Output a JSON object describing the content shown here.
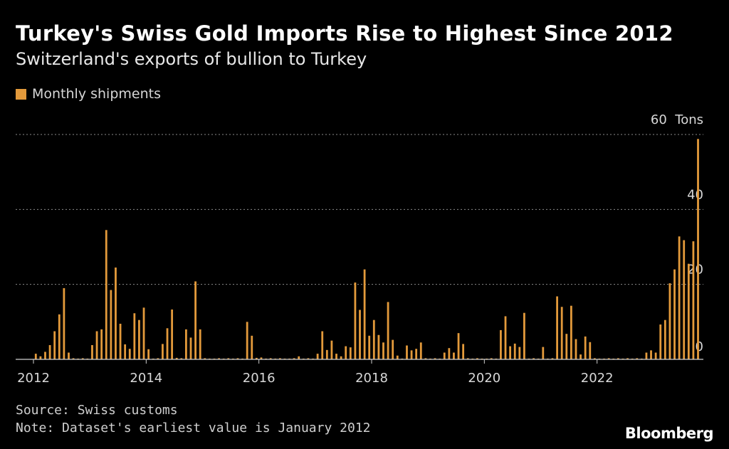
{
  "colors": {
    "bar": "#e39a3b",
    "grid": "#8a8a8a",
    "axis": "#cfcfcf",
    "tick": "#d8d8d8"
  },
  "brand": "Bloomberg",
  "footer": {
    "source": "Source: Swiss customs",
    "note": "Note: Dataset's earliest value is January 2012"
  },
  "chart_data": {
    "type": "bar",
    "title": "Turkey's Swiss Gold Imports Rise to Highest Since 2012",
    "subtitle": "Switzerland's exports of bullion to Turkey",
    "legend": [
      "Monthly shipments"
    ],
    "ylabel": "Tons",
    "ylim": [
      0,
      60
    ],
    "y_ticks": [
      {
        "value": 0,
        "label": "0"
      },
      {
        "value": 20,
        "label": "20"
      },
      {
        "value": 40,
        "label": "40"
      },
      {
        "value": 60,
        "label": "60  Tons"
      }
    ],
    "x_ticks": [
      {
        "value": 2012,
        "label": "2012"
      },
      {
        "value": 2014,
        "label": "2014"
      },
      {
        "value": 2016,
        "label": "2016"
      },
      {
        "value": 2018,
        "label": "2018"
      },
      {
        "value": 2020,
        "label": "2020"
      },
      {
        "value": 2022,
        "label": "2022"
      }
    ],
    "xlim": [
      2012,
      2024
    ],
    "x_start": "2012-01",
    "series": [
      {
        "name": "Monthly shipments",
        "values": [
          1.5,
          0.8,
          2.0,
          3.8,
          7.5,
          12.0,
          19.0,
          1.8,
          0.3,
          0.2,
          0.3,
          0.2,
          3.8,
          7.5,
          8.0,
          34.5,
          18.5,
          24.5,
          9.5,
          4.0,
          2.8,
          12.3,
          10.5,
          13.8,
          2.7,
          0.2,
          0.3,
          4.1,
          8.3,
          13.3,
          0.4,
          0.3,
          8.0,
          5.8,
          20.8,
          8.0,
          0.3,
          0.2,
          0.2,
          0.3,
          0.2,
          0.3,
          0.2,
          0.3,
          0.2,
          10.0,
          6.3,
          0.4,
          0.5,
          0.2,
          0.3,
          0.2,
          0.3,
          0.2,
          0.2,
          0.3,
          0.8,
          0.2,
          0.3,
          0.2,
          1.5,
          7.5,
          2.5,
          5.0,
          1.5,
          0.8,
          3.5,
          3.2,
          20.5,
          13.2,
          24.0,
          6.3,
          10.5,
          6.5,
          4.5,
          15.3,
          5.2,
          1.0,
          0.2,
          3.7,
          2.4,
          2.8,
          4.5,
          0.3,
          0.2,
          0.3,
          0.2,
          1.8,
          3.0,
          1.8,
          7.0,
          4.1,
          0.3,
          0.2,
          0.3,
          0.2,
          0.2,
          0.3,
          0.2,
          7.8,
          11.5,
          3.5,
          4.2,
          3.3,
          12.4,
          0.2,
          0.3,
          0.2,
          3.3,
          0.2,
          0.3,
          16.8,
          14.0,
          6.8,
          14.3,
          5.4,
          1.3,
          6.1,
          4.6,
          0.3,
          0.2,
          0.2,
          0.3,
          0.2,
          0.3,
          0.2,
          0.3,
          0.2,
          0.3,
          0.2,
          1.8,
          2.4,
          1.8,
          9.3,
          10.5,
          20.3,
          24.0,
          32.8,
          31.8,
          25.5,
          31.5,
          58.8
        ]
      }
    ]
  }
}
